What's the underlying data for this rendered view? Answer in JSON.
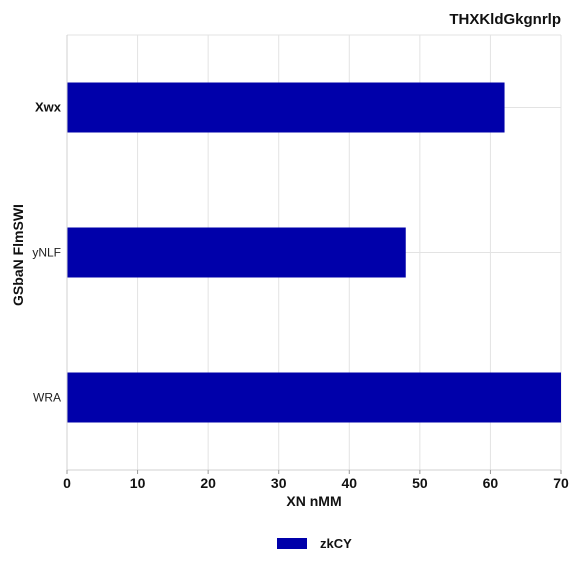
{
  "chart_data": {
    "type": "bar",
    "orientation": "horizontal",
    "title": "THXKldGkgnrlp",
    "xlabel": "XN nMM",
    "ylabel": "GSbaN FlmSWI",
    "categories": [
      "Xwx",
      "yNLF",
      "WRA"
    ],
    "series": [
      {
        "name": "zkCY",
        "values": [
          62,
          48,
          70
        ],
        "color": "#0000AA"
      }
    ],
    "xlim": [
      0,
      70
    ],
    "xticks": [
      0,
      10,
      20,
      30,
      40,
      50,
      60,
      70
    ],
    "grid": true,
    "legend_position": "bottom-center"
  }
}
